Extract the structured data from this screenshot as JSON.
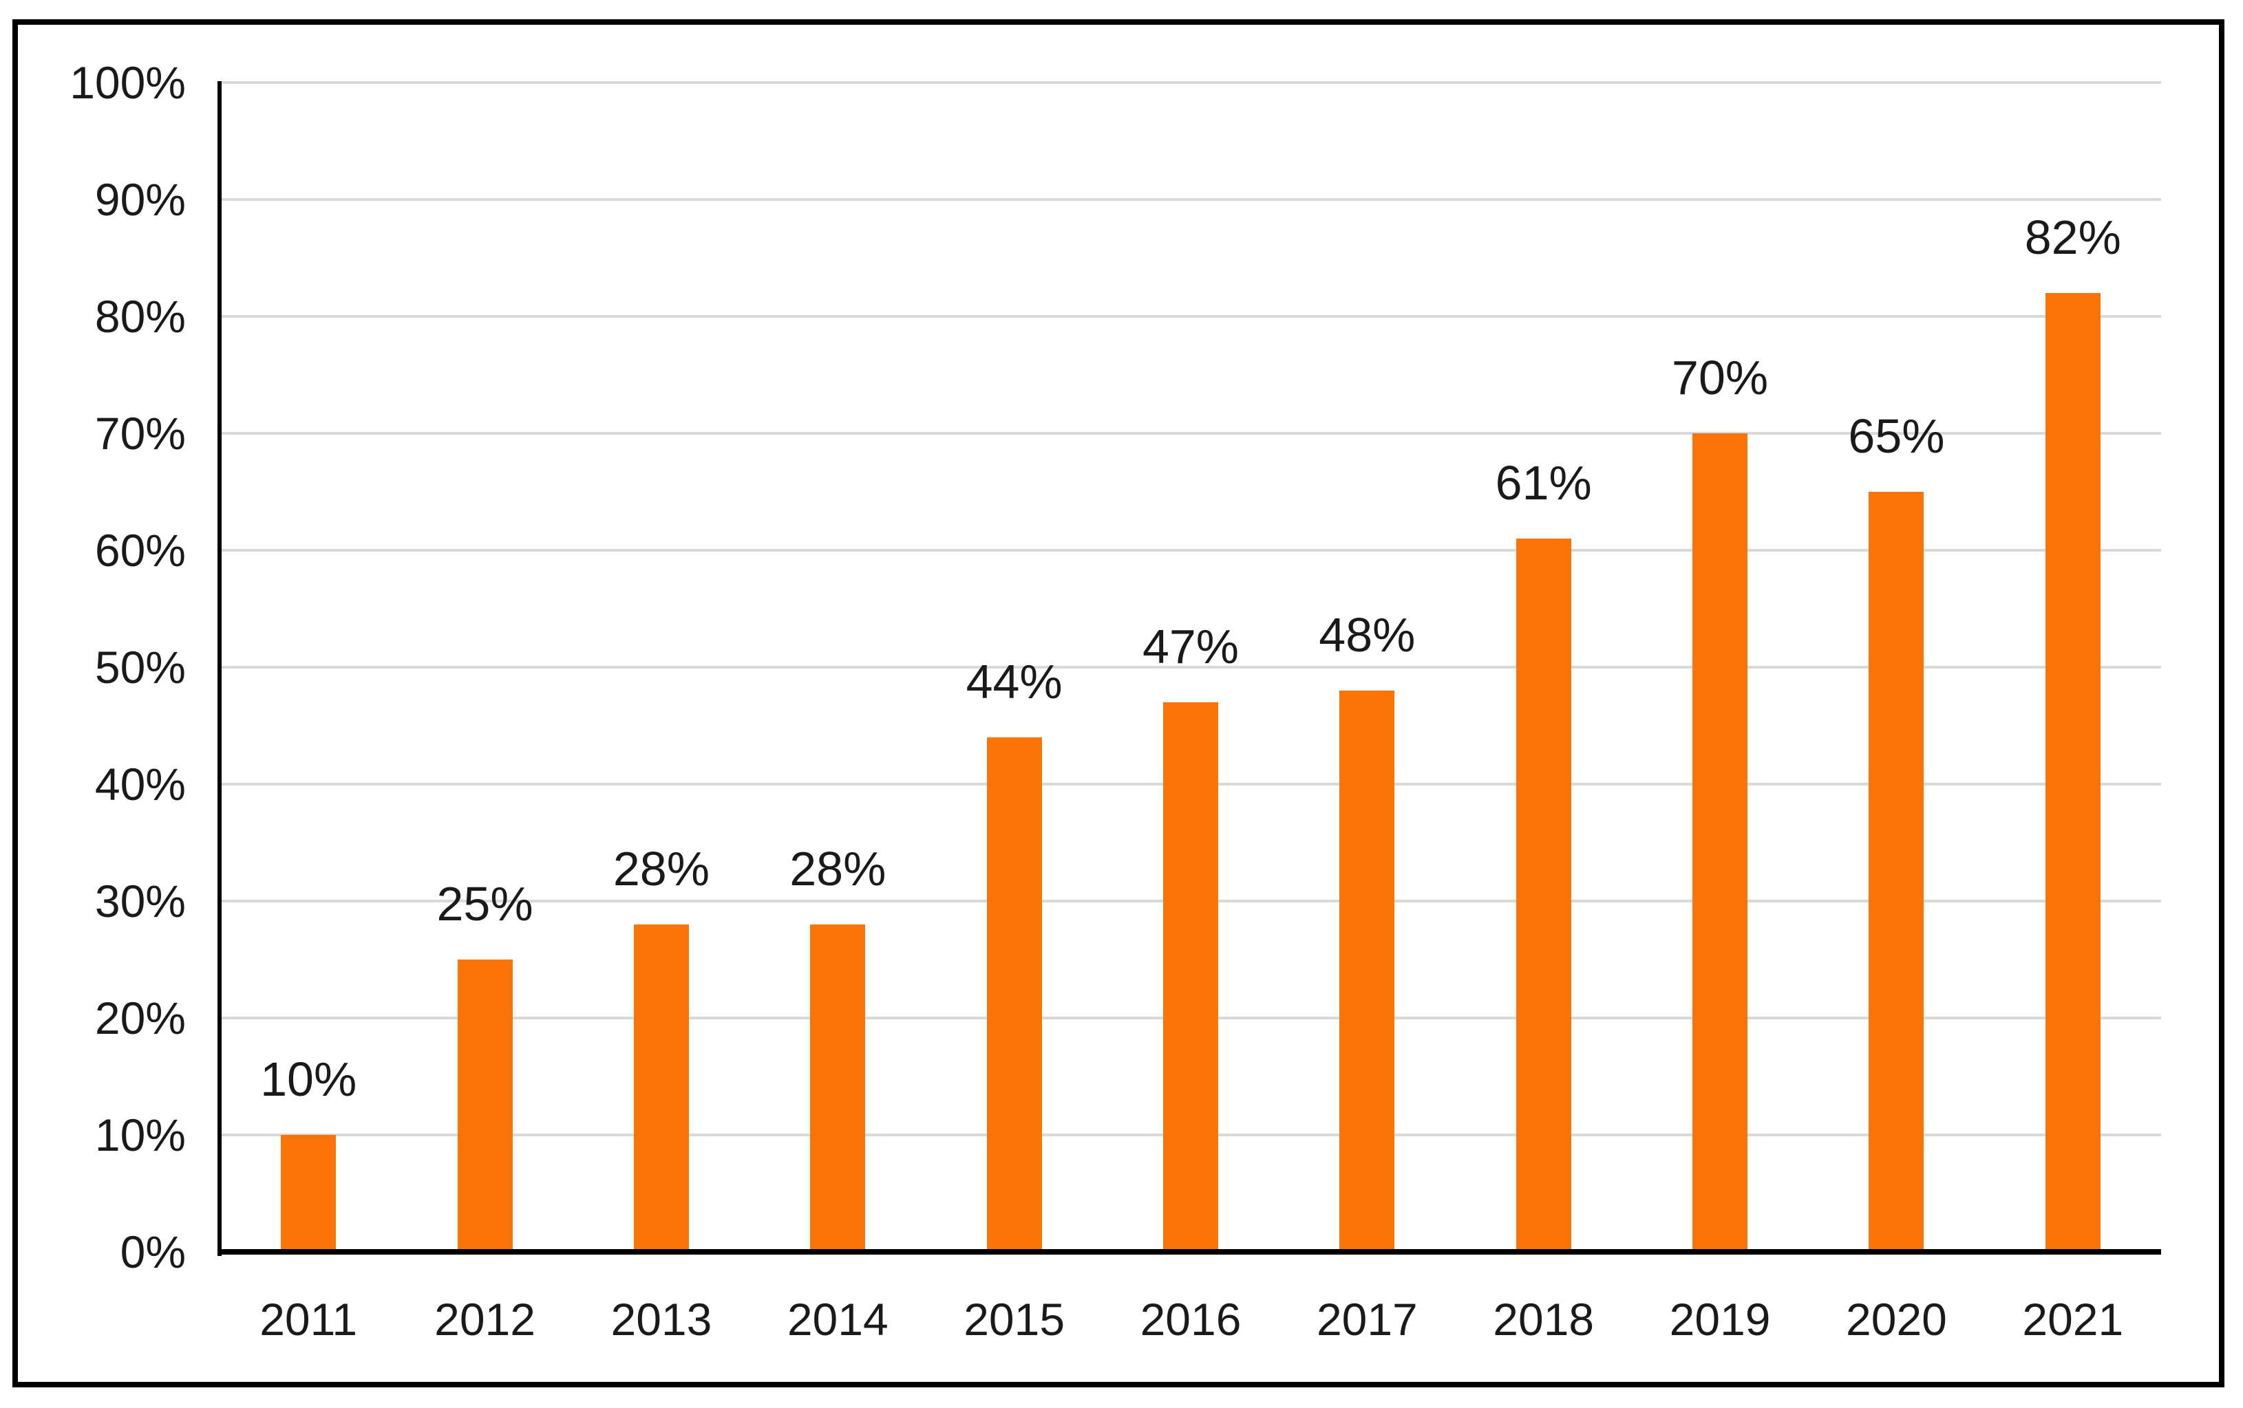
{
  "chart_data": {
    "type": "bar",
    "title": "",
    "xlabel": "",
    "ylabel": "",
    "categories": [
      "2011",
      "2012",
      "2013",
      "2014",
      "2015",
      "2016",
      "2017",
      "2018",
      "2019",
      "2020",
      "2021"
    ],
    "values": [
      10,
      25,
      28,
      28,
      44,
      47,
      48,
      61,
      70,
      65,
      82
    ],
    "bar_labels": [
      "10%",
      "25%",
      "28%",
      "28%",
      "44%",
      "47%",
      "48%",
      "61%",
      "70%",
      "65%",
      "82%"
    ],
    "ytick_labels": [
      "0%",
      "10%",
      "20%",
      "30%",
      "40%",
      "50%",
      "60%",
      "70%",
      "80%",
      "90%",
      "100%"
    ],
    "ytick_values": [
      0,
      10,
      20,
      30,
      40,
      50,
      60,
      70,
      80,
      90,
      100
    ],
    "ylim": [
      0,
      100
    ],
    "grid": "horizontal",
    "legend_position": "none",
    "colors": {
      "bar_fill": "#F97306",
      "gridline": "#D9D9D9",
      "axis_line": "#000000",
      "text": "#1A1A1A",
      "outer_border": "#000000",
      "background": "#FFFFFF"
    }
  }
}
